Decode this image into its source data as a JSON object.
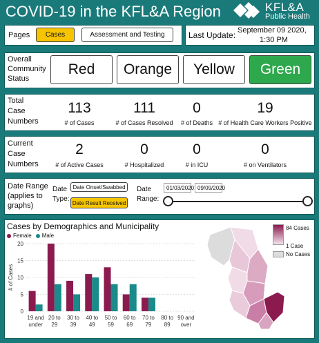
{
  "header": {
    "title": "COVID-19 in the KFL&A Region",
    "logo_name": "KFL&A",
    "logo_sub": "Public Health"
  },
  "pages": {
    "label": "Pages",
    "tabs": [
      {
        "label": "Cases",
        "active": true
      },
      {
        "label": "Assessment and Testing",
        "active": false
      }
    ]
  },
  "update": {
    "label": "Last Update:",
    "value_line1": "September 09 2020,",
    "value_line2": "1:30 PM"
  },
  "status": {
    "label": [
      "Overall",
      "Community",
      "Status"
    ],
    "levels": [
      {
        "label": "Red",
        "active": false
      },
      {
        "label": "Orange",
        "active": false
      },
      {
        "label": "Yellow",
        "active": false
      },
      {
        "label": "Green",
        "active": true
      }
    ]
  },
  "totals": {
    "label": [
      "Total",
      "Case",
      "Numbers"
    ],
    "items": [
      {
        "value": "113",
        "caption": "# of Cases"
      },
      {
        "value": "111",
        "caption": "# of Cases Resolved"
      },
      {
        "value": "0",
        "caption": "# of Deaths"
      },
      {
        "value": "19",
        "caption": "# of Health Care Workers Positive"
      }
    ]
  },
  "current": {
    "label": [
      "Current",
      "Case",
      "Numbers"
    ],
    "items": [
      {
        "value": "2",
        "caption": "# of Active Cases"
      },
      {
        "value": "0",
        "caption": "# Hospitalized"
      },
      {
        "value": "0",
        "caption": "# in ICU"
      },
      {
        "value": "0",
        "caption": "# on Ventilators"
      }
    ]
  },
  "filters": {
    "date_range_label": [
      "Date Range",
      "(applies to",
      "graphs)"
    ],
    "date_type_label": [
      "Date",
      "Type:"
    ],
    "date_types": [
      {
        "label": "Date Onset/Swabbed",
        "active": false
      },
      {
        "label": "Date Result Received",
        "active": true
      }
    ],
    "range_label": [
      "Date",
      "Range:"
    ],
    "start_date": "01/03/2020",
    "end_date": "09/09/2020"
  },
  "chart_data": {
    "type": "bar",
    "title": "Cases by Demographics and Municipality",
    "ylabel": "# of Cases",
    "xlabel": "",
    "ylim": [
      0,
      20
    ],
    "yticks": [
      0,
      5,
      10,
      15,
      20
    ],
    "categories": [
      "19 and under",
      "20 to 29",
      "30 to 39",
      "40 to 49",
      "50 to 59",
      "60 to 69",
      "70 to 79",
      "80 to 89",
      "90 and over"
    ],
    "series": [
      {
        "name": "Female",
        "color": "#8b1a4f",
        "values": [
          6,
          20,
          9,
          11,
          13,
          5,
          4,
          0,
          0
        ]
      },
      {
        "name": "Male",
        "color": "#1a8a8a",
        "values": [
          2,
          8,
          5,
          10,
          8,
          8,
          4,
          0,
          0
        ]
      }
    ]
  },
  "map_legend": {
    "max_label": "84 Cases",
    "min_label": "1 Case",
    "none_label": "No Cases",
    "max_color": "#8b1a4f",
    "min_color": "#f3e4ec",
    "none_color": "#dcdcdc"
  }
}
